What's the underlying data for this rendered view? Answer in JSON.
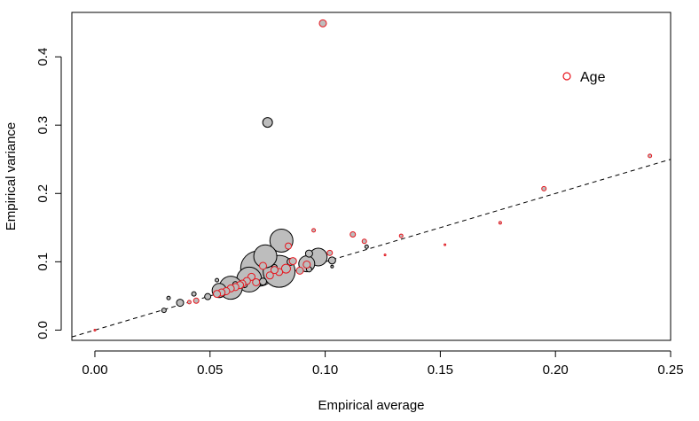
{
  "chart_data": {
    "type": "scatter",
    "xlabel": "Empirical average",
    "ylabel": "Empirical variance",
    "xlim": [
      -0.01,
      0.25
    ],
    "ylim": [
      -0.015,
      0.465
    ],
    "xticks": [
      0.0,
      0.05,
      0.1,
      0.15,
      0.2,
      0.25
    ],
    "xtick_labels": [
      "0.00",
      "0.05",
      "0.10",
      "0.15",
      "0.20",
      "0.25"
    ],
    "yticks": [
      0.0,
      0.1,
      0.2,
      0.3,
      0.4
    ],
    "ytick_labels": [
      "0.0",
      "0.1",
      "0.2",
      "0.3",
      "0.4"
    ],
    "reference_line": {
      "style": "dashed",
      "color": "#000000",
      "x": [
        -0.01,
        0.25
      ],
      "y": [
        -0.01,
        0.25
      ]
    },
    "legend": {
      "position": "top-right",
      "entries": [
        {
          "label": "Age",
          "marker": "open-circle",
          "color": "#e8141c"
        }
      ]
    },
    "colors": {
      "point_fill": "#bdbdbd",
      "black_edge": "#000000",
      "red_edge": "#e8141c"
    },
    "series": [
      {
        "name": "Age",
        "edge": "red",
        "points": [
          {
            "x": 0.099,
            "y": 0.449,
            "r": 4
          },
          {
            "x": 0.241,
            "y": 0.255,
            "r": 2
          },
          {
            "x": 0.195,
            "y": 0.207,
            "r": 2.5
          },
          {
            "x": 0.176,
            "y": 0.157,
            "r": 1.5
          },
          {
            "x": 0.152,
            "y": 0.125,
            "r": 1
          },
          {
            "x": 0.133,
            "y": 0.138,
            "r": 2
          },
          {
            "x": 0.126,
            "y": 0.11,
            "r": 1
          },
          {
            "x": 0.117,
            "y": 0.13,
            "r": 2.5
          },
          {
            "x": 0.112,
            "y": 0.14,
            "r": 3
          },
          {
            "x": 0.102,
            "y": 0.113,
            "r": 3
          },
          {
            "x": 0.095,
            "y": 0.146,
            "r": 2
          },
          {
            "x": 0.092,
            "y": 0.096,
            "r": 4
          },
          {
            "x": 0.089,
            "y": 0.087,
            "r": 4
          },
          {
            "x": 0.086,
            "y": 0.101,
            "r": 4
          },
          {
            "x": 0.084,
            "y": 0.123,
            "r": 3.5
          },
          {
            "x": 0.083,
            "y": 0.09,
            "r": 5
          },
          {
            "x": 0.08,
            "y": 0.085,
            "r": 4
          },
          {
            "x": 0.078,
            "y": 0.088,
            "r": 4
          },
          {
            "x": 0.076,
            "y": 0.08,
            "r": 4
          },
          {
            "x": 0.073,
            "y": 0.094,
            "r": 4
          },
          {
            "x": 0.07,
            "y": 0.07,
            "r": 4
          },
          {
            "x": 0.068,
            "y": 0.078,
            "r": 4
          },
          {
            "x": 0.066,
            "y": 0.072,
            "r": 4
          },
          {
            "x": 0.064,
            "y": 0.068,
            "r": 4
          },
          {
            "x": 0.063,
            "y": 0.066,
            "r": 4
          },
          {
            "x": 0.061,
            "y": 0.063,
            "r": 4
          },
          {
            "x": 0.059,
            "y": 0.061,
            "r": 4
          },
          {
            "x": 0.057,
            "y": 0.057,
            "r": 4
          },
          {
            "x": 0.055,
            "y": 0.055,
            "r": 4
          },
          {
            "x": 0.053,
            "y": 0.053,
            "r": 4
          },
          {
            "x": 0.044,
            "y": 0.043,
            "r": 3
          },
          {
            "x": 0.041,
            "y": 0.041,
            "r": 2
          },
          {
            "x": 0.0,
            "y": 0.0,
            "r": 1
          }
        ]
      },
      {
        "edge": "black",
        "points": [
          {
            "x": 0.075,
            "y": 0.304,
            "r": 5.5
          },
          {
            "x": 0.081,
            "y": 0.131,
            "r": 13
          },
          {
            "x": 0.074,
            "y": 0.108,
            "r": 13
          },
          {
            "x": 0.097,
            "y": 0.107,
            "r": 10
          },
          {
            "x": 0.071,
            "y": 0.09,
            "r": 20
          },
          {
            "x": 0.08,
            "y": 0.086,
            "r": 18
          },
          {
            "x": 0.067,
            "y": 0.074,
            "r": 14
          },
          {
            "x": 0.059,
            "y": 0.062,
            "r": 13
          },
          {
            "x": 0.054,
            "y": 0.058,
            "r": 8
          },
          {
            "x": 0.092,
            "y": 0.097,
            "r": 9
          },
          {
            "x": 0.093,
            "y": 0.112,
            "r": 4
          },
          {
            "x": 0.103,
            "y": 0.102,
            "r": 4
          },
          {
            "x": 0.118,
            "y": 0.122,
            "r": 2
          },
          {
            "x": 0.103,
            "y": 0.093,
            "r": 1.5
          },
          {
            "x": 0.093,
            "y": 0.089,
            "r": 3
          },
          {
            "x": 0.085,
            "y": 0.1,
            "r": 4
          },
          {
            "x": 0.078,
            "y": 0.092,
            "r": 3
          },
          {
            "x": 0.073,
            "y": 0.071,
            "r": 4
          },
          {
            "x": 0.065,
            "y": 0.066,
            "r": 3
          },
          {
            "x": 0.061,
            "y": 0.067,
            "r": 3
          },
          {
            "x": 0.049,
            "y": 0.049,
            "r": 3.5
          },
          {
            "x": 0.043,
            "y": 0.053,
            "r": 2.5
          },
          {
            "x": 0.037,
            "y": 0.04,
            "r": 4
          },
          {
            "x": 0.032,
            "y": 0.047,
            "r": 2
          },
          {
            "x": 0.03,
            "y": 0.029,
            "r": 2.5
          },
          {
            "x": 0.053,
            "y": 0.073,
            "r": 2
          }
        ]
      }
    ]
  }
}
